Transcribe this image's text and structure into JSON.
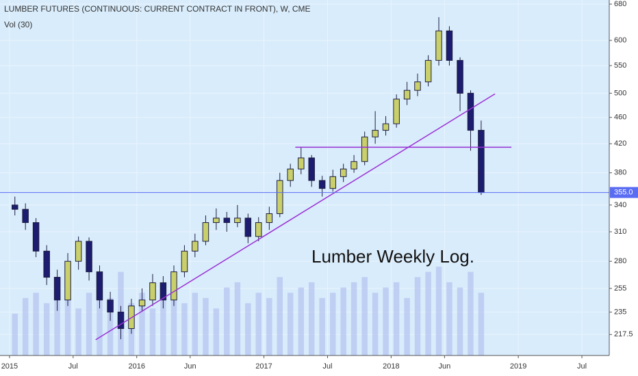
{
  "chart_data": {
    "type": "candlestick",
    "title": "LUMBER FUTURES (CONTINUOUS: CURRENT CONTRACT IN FRONT), W, CME",
    "subtitle": "Vol (30)",
    "annotation": "Lumber Weekly Log.",
    "log_scale": true,
    "grid": true,
    "up_color": "#c9d06b",
    "down_color": "#1c1c70",
    "volume_color": "#b6c6f0",
    "x": [
      2015.042,
      2015.125,
      2015.208,
      2015.292,
      2015.375,
      2015.458,
      2015.542,
      2015.625,
      2015.708,
      2015.792,
      2015.875,
      2015.958,
      2016.042,
      2016.125,
      2016.208,
      2016.292,
      2016.375,
      2016.458,
      2016.542,
      2016.625,
      2016.708,
      2016.792,
      2016.875,
      2016.958,
      2017.042,
      2017.125,
      2017.208,
      2017.292,
      2017.375,
      2017.458,
      2017.542,
      2017.625,
      2017.708,
      2017.792,
      2017.875,
      2017.958,
      2018.042,
      2018.125,
      2018.208,
      2018.292,
      2018.375,
      2018.458,
      2018.542,
      2018.625,
      2018.708
    ],
    "open": [
      340,
      335,
      320,
      290,
      265,
      245,
      280,
      300,
      270,
      245,
      235,
      222,
      240,
      245,
      260,
      245,
      270,
      290,
      300,
      320,
      325,
      320,
      325,
      305,
      320,
      330,
      370,
      385,
      400,
      370,
      360,
      375,
      385,
      395,
      430,
      440,
      450,
      490,
      505,
      520,
      560,
      620,
      560,
      500,
      440
    ],
    "high": [
      350,
      342,
      325,
      296,
      272,
      288,
      305,
      304,
      276,
      252,
      240,
      246,
      255,
      268,
      266,
      276,
      296,
      308,
      328,
      336,
      332,
      340,
      330,
      326,
      338,
      380,
      392,
      415,
      404,
      376,
      384,
      392,
      404,
      438,
      470,
      462,
      498,
      520,
      535,
      570,
      650,
      630,
      566,
      505,
      455
    ],
    "low": [
      328,
      312,
      284,
      258,
      236,
      240,
      272,
      262,
      238,
      228,
      214,
      218,
      236,
      240,
      238,
      240,
      265,
      284,
      296,
      312,
      310,
      315,
      298,
      300,
      312,
      326,
      362,
      378,
      362,
      350,
      356,
      368,
      380,
      390,
      420,
      432,
      444,
      480,
      495,
      512,
      550,
      550,
      470,
      410,
      352
    ],
    "close": [
      335,
      320,
      290,
      265,
      245,
      280,
      300,
      270,
      245,
      235,
      222,
      240,
      245,
      260,
      245,
      270,
      290,
      300,
      320,
      325,
      320,
      325,
      305,
      320,
      330,
      370,
      385,
      400,
      370,
      360,
      375,
      385,
      395,
      430,
      440,
      450,
      490,
      505,
      520,
      560,
      620,
      560,
      500,
      440,
      355
    ],
    "volume": [
      40,
      55,
      60,
      50,
      65,
      70,
      45,
      60,
      75,
      55,
      80,
      50,
      60,
      45,
      55,
      70,
      50,
      60,
      55,
      45,
      65,
      70,
      50,
      60,
      55,
      75,
      60,
      65,
      70,
      55,
      60,
      65,
      70,
      75,
      60,
      65,
      70,
      55,
      75,
      80,
      85,
      70,
      65,
      80,
      60
    ],
    "drawings": [
      {
        "x": [
          2015.677,
          2018.817
        ],
        "y": [
          213.6,
          499
        ],
        "color": "#9a2fd6"
      },
      {
        "x": [
          2017.247,
          2018.946
        ],
        "y": [
          415,
          415
        ],
        "color": "#9a2fd6"
      }
    ],
    "last_price": {
      "value": 355,
      "label": "355.0"
    },
    "last_price_color": "#5a6cf2",
    "xlim": [
      2014.925,
      2019.715
    ],
    "ylim": [
      202.3,
      689.7
    ],
    "xticks": [
      {
        "value": 2015,
        "label": "2015"
      },
      {
        "value": 2015.5,
        "label": "Jul"
      },
      {
        "value": 2016,
        "label": "2016"
      },
      {
        "value": 2016.42,
        "label": "Jun"
      },
      {
        "value": 2017,
        "label": "2017"
      },
      {
        "value": 2017.5,
        "label": "Jul"
      },
      {
        "value": 2018,
        "label": "2018"
      },
      {
        "value": 2018.42,
        "label": "Jun"
      },
      {
        "value": 2019,
        "label": "2019"
      },
      {
        "value": 2019.5,
        "label": "Jul"
      }
    ],
    "yticks": [
      680,
      600,
      550,
      500,
      460,
      420,
      380,
      340,
      310,
      280,
      255,
      235,
      {
        "value": 217.5,
        "label": "217.5"
      }
    ]
  }
}
